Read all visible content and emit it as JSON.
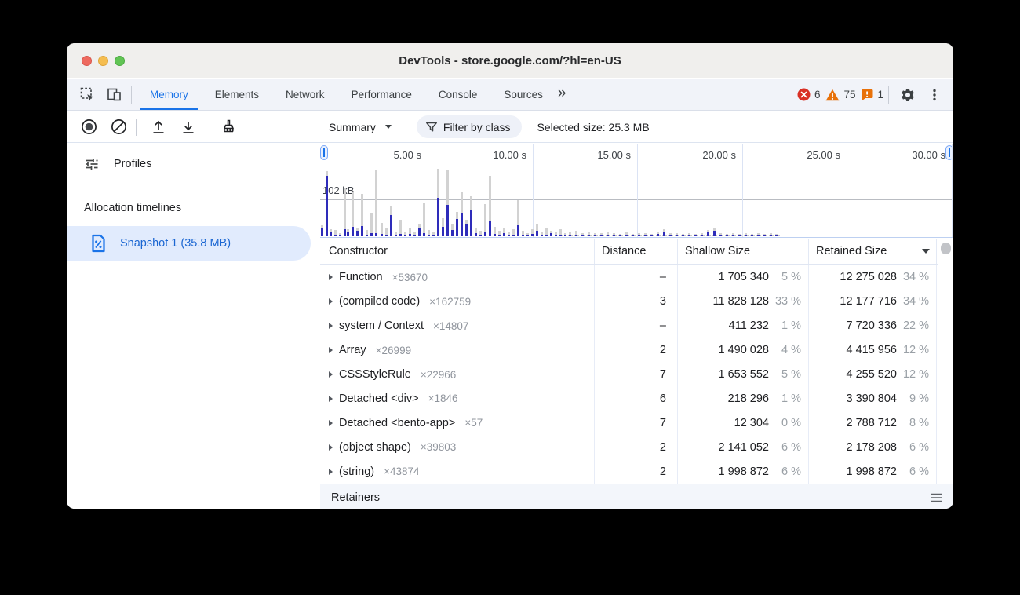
{
  "window": {
    "title": "DevTools - store.google.com/?hl=en-US"
  },
  "tabbar": {
    "tabs": [
      {
        "label": "Memory",
        "active": true
      },
      {
        "label": "Elements",
        "active": false
      },
      {
        "label": "Network",
        "active": false
      },
      {
        "label": "Performance",
        "active": false
      },
      {
        "label": "Console",
        "active": false
      },
      {
        "label": "Sources",
        "active": false
      }
    ],
    "more_tabs_label": "»",
    "errors_count": "6",
    "warnings_count": "75",
    "issues_count": "1"
  },
  "toolbar": {
    "perspective": "Summary",
    "filter_label": "Filter by class",
    "selected_size": "Selected size: 25.3 MB"
  },
  "sidebar": {
    "profiles_label": "Profiles",
    "section_label": "Allocation timelines",
    "snapshot_label": "Snapshot 1 (35.8 MB)"
  },
  "timeline": {
    "axis_labels": [
      "5.00 s",
      "10.00 s",
      "15.00 s",
      "20.00 s",
      "25.00 s",
      "30.00 s"
    ],
    "tick_offsets": [
      137,
      271,
      404,
      538,
      671,
      805
    ],
    "memory_label": "102 kB",
    "bars": [
      [
        1,
        14,
        10
      ],
      [
        7,
        83,
        77
      ],
      [
        12,
        9,
        6
      ],
      [
        18,
        8,
        2
      ],
      [
        24,
        4,
        1
      ],
      [
        30,
        62,
        9
      ],
      [
        34,
        9,
        6
      ],
      [
        40,
        56,
        12
      ],
      [
        46,
        11,
        7
      ],
      [
        52,
        54,
        13
      ],
      [
        58,
        8,
        2
      ],
      [
        64,
        30,
        4
      ],
      [
        70,
        85,
        4
      ],
      [
        77,
        17,
        3
      ],
      [
        83,
        10,
        2
      ],
      [
        89,
        38,
        27
      ],
      [
        95,
        6,
        2
      ],
      [
        101,
        21,
        3
      ],
      [
        107,
        5,
        1
      ],
      [
        113,
        11,
        3
      ],
      [
        119,
        6,
        2
      ],
      [
        125,
        15,
        10
      ],
      [
        131,
        42,
        4
      ],
      [
        137,
        8,
        2
      ],
      [
        143,
        6,
        2
      ],
      [
        149,
        86,
        49
      ],
      [
        155,
        23,
        12
      ],
      [
        161,
        84,
        40
      ],
      [
        167,
        15,
        8
      ],
      [
        173,
        31,
        22
      ],
      [
        179,
        56,
        30
      ],
      [
        185,
        21,
        16
      ],
      [
        191,
        51,
        33
      ],
      [
        197,
        11,
        4
      ],
      [
        203,
        7,
        2
      ],
      [
        209,
        41,
        6
      ],
      [
        215,
        77,
        19
      ],
      [
        221,
        12,
        3
      ],
      [
        227,
        7,
        2
      ],
      [
        233,
        10,
        4
      ],
      [
        239,
        5,
        1
      ],
      [
        245,
        9,
        2
      ],
      [
        251,
        46,
        14
      ],
      [
        257,
        7,
        2
      ],
      [
        263,
        4,
        1
      ],
      [
        269,
        9,
        3
      ],
      [
        275,
        15,
        7
      ],
      [
        281,
        5,
        1
      ],
      [
        287,
        10,
        2
      ],
      [
        293,
        7,
        4
      ],
      [
        299,
        5,
        1
      ],
      [
        305,
        9,
        2
      ],
      [
        311,
        4,
        1
      ],
      [
        317,
        5,
        2
      ],
      [
        325,
        7,
        2
      ],
      [
        333,
        4,
        1
      ],
      [
        341,
        6,
        2
      ],
      [
        349,
        4,
        1
      ],
      [
        357,
        4,
        2
      ],
      [
        365,
        5,
        1
      ],
      [
        373,
        4,
        1
      ],
      [
        381,
        3,
        1
      ],
      [
        389,
        5,
        2
      ],
      [
        397,
        3,
        1
      ],
      [
        405,
        4,
        2
      ],
      [
        413,
        4,
        1
      ],
      [
        421,
        3,
        1
      ],
      [
        429,
        6,
        3
      ],
      [
        437,
        9,
        5
      ],
      [
        445,
        4,
        1
      ],
      [
        453,
        4,
        2
      ],
      [
        461,
        3,
        1
      ],
      [
        469,
        4,
        2
      ],
      [
        477,
        3,
        1
      ],
      [
        485,
        4,
        1
      ],
      [
        493,
        8,
        5
      ],
      [
        501,
        10,
        7
      ],
      [
        509,
        4,
        2
      ],
      [
        517,
        3,
        1
      ],
      [
        525,
        4,
        2
      ],
      [
        533,
        3,
        1
      ],
      [
        541,
        4,
        2
      ],
      [
        549,
        3,
        1
      ],
      [
        557,
        4,
        2
      ],
      [
        565,
        3,
        1
      ],
      [
        573,
        4,
        2
      ],
      [
        580,
        3,
        1
      ]
    ]
  },
  "grid": {
    "columns": [
      "Constructor",
      "Distance",
      "Shallow Size",
      "Retained Size"
    ],
    "sorted_by": "Retained Size",
    "sort_direction": "desc",
    "rows": [
      {
        "name": "Function",
        "count": "×53670",
        "distance": "–",
        "shallow": "1 705 340",
        "shallow_pct": "5 %",
        "retained": "12 275 028",
        "retained_pct": "34 %"
      },
      {
        "name": "(compiled code)",
        "count": "×162759",
        "distance": "3",
        "shallow": "11 828 128",
        "shallow_pct": "33 %",
        "retained": "12 177 716",
        "retained_pct": "34 %"
      },
      {
        "name": "system / Context",
        "count": "×14807",
        "distance": "–",
        "shallow": "411 232",
        "shallow_pct": "1 %",
        "retained": "7 720 336",
        "retained_pct": "22 %"
      },
      {
        "name": "Array",
        "count": "×26999",
        "distance": "2",
        "shallow": "1 490 028",
        "shallow_pct": "4 %",
        "retained": "4 415 956",
        "retained_pct": "12 %"
      },
      {
        "name": "CSSStyleRule",
        "count": "×22966",
        "distance": "7",
        "shallow": "1 653 552",
        "shallow_pct": "5 %",
        "retained": "4 255 520",
        "retained_pct": "12 %"
      },
      {
        "name": "Detached <div>",
        "count": "×1846",
        "distance": "6",
        "shallow": "218 296",
        "shallow_pct": "1 %",
        "retained": "3 390 804",
        "retained_pct": "9 %"
      },
      {
        "name": "Detached <bento-app>",
        "count": "×57",
        "distance": "7",
        "shallow": "12 304",
        "shallow_pct": "0 %",
        "retained": "2 788 712",
        "retained_pct": "8 %"
      },
      {
        "name": "(object shape)",
        "count": "×39803",
        "distance": "2",
        "shallow": "2 141 052",
        "shallow_pct": "6 %",
        "retained": "2 178 208",
        "retained_pct": "6 %"
      },
      {
        "name": "(string)",
        "count": "×43874",
        "distance": "2",
        "shallow": "1 998 872",
        "shallow_pct": "6 %",
        "retained": "1 998 872",
        "retained_pct": "6 %"
      }
    ]
  },
  "retainers": {
    "label": "Retainers"
  },
  "icons": {
    "inspect": "inspect-cursor",
    "device": "device-toolbar",
    "record": "record-heap",
    "block": "clear-profile",
    "upload": "load-profile",
    "download": "save-profile",
    "broom": "clear-all",
    "tune": "profiles",
    "snapshot": "heap-snapshot-document",
    "funnel": "filter",
    "gear": "settings",
    "kebab": "more-options",
    "error": "error-badge",
    "warning": "warning-badge",
    "issue": "issue-badge",
    "menu": "retainers-menu"
  },
  "colors": {
    "accent": "#1a73e8",
    "selected_item_bg": "#e1ebfd",
    "selected_item_text": "#1a66d2",
    "bar_total_gray": "#d2d2d2",
    "bar_live_blue": "#2e2cba",
    "error_red": "#d93025",
    "warning_orange": "#e8710a",
    "issue_orange": "#e8710a"
  }
}
